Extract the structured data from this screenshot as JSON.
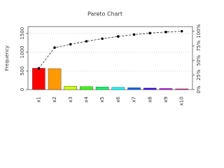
{
  "chart_data": {
    "type": "pareto",
    "title": "Pareto Chart",
    "ylabel": "Frequency",
    "categories": [
      "x1",
      "x2",
      "x3",
      "x4",
      "x5",
      "x6",
      "x7",
      "x8",
      "x9",
      "x10"
    ],
    "series": [
      {
        "type": "bar",
        "values": [
          570,
          560,
          90,
          80,
          70,
          60,
          50,
          40,
          30,
          20
        ],
        "colors": [
          "#FF0000",
          "#FF9900",
          "#CCFF00",
          "#33FF00",
          "#00FF66",
          "#00FFFF",
          "#0066FF",
          "#3300FF",
          "#CC00FF",
          "#FF0099"
        ]
      },
      {
        "type": "line",
        "axis": "y2",
        "color": "#000000",
        "values": [
          36.3,
          72,
          77.7,
          82.8,
          87.3,
          91.1,
          94.3,
          96.8,
          98.7,
          100
        ]
      }
    ],
    "ylim": [
      0,
      1680
    ],
    "yticks": [
      0,
      500,
      1000,
      1500
    ],
    "y2lim": [
      0,
      108
    ],
    "y2ticks": [
      {
        "value": 0,
        "label": "0%"
      },
      {
        "value": 25,
        "label": "25%"
      },
      {
        "value": 50,
        "label": "50%"
      },
      {
        "value": 75,
        "label": "75%"
      },
      {
        "value": 100,
        "label": "100%"
      }
    ],
    "grid": true
  }
}
